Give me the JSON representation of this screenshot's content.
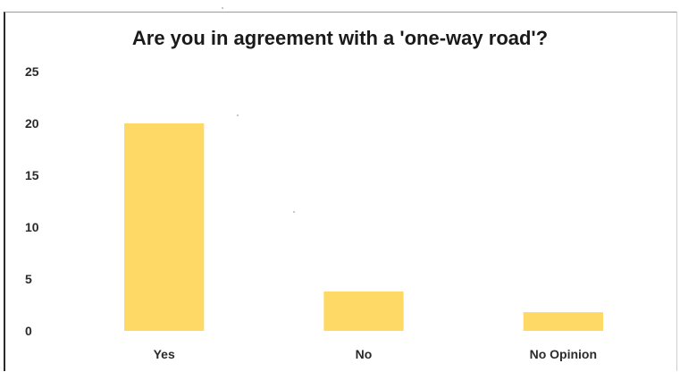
{
  "chart_data": {
    "type": "bar",
    "title": "Are you in agreement with a 'one-way road'?",
    "categories": [
      "Yes",
      "No",
      "No Opinion"
    ],
    "values": [
      20,
      3.8,
      1.8
    ],
    "ylim": [
      0,
      25
    ],
    "yticks": [
      0,
      5,
      10,
      15,
      20,
      25
    ],
    "grid": false,
    "legend": "none",
    "bar_color": "#ffd966"
  }
}
